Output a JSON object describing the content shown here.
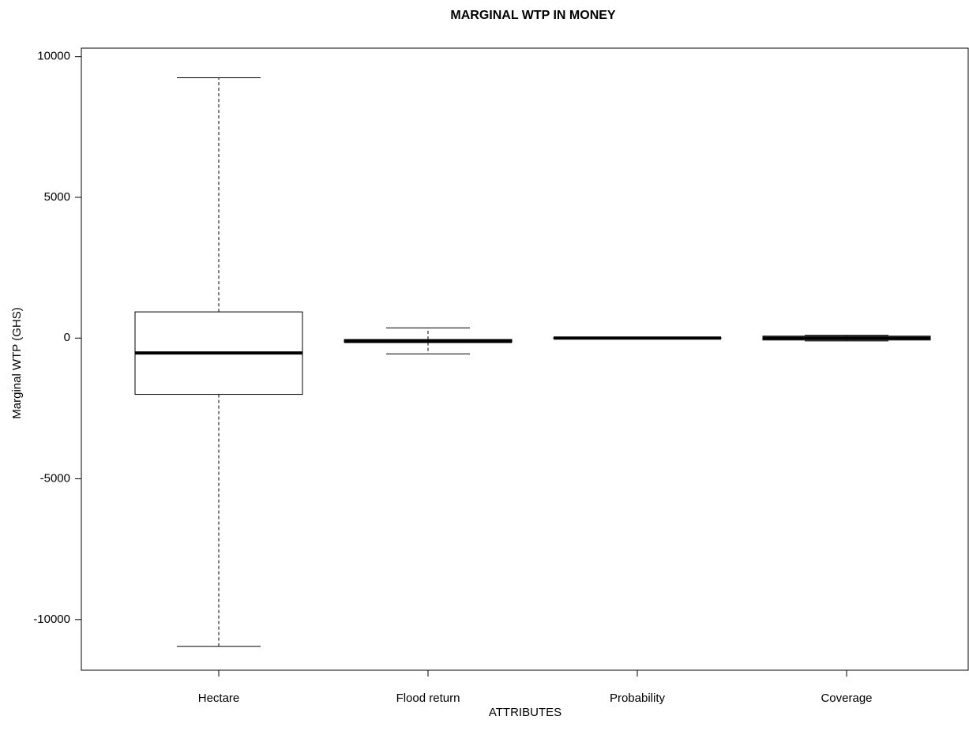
{
  "chart_data": {
    "type": "box",
    "title": "MARGINAL WTP IN MONEY",
    "x_label": "ATTRIBUTES",
    "y_label": "Marginal WTP (GHS)",
    "categories": [
      "Hectare",
      "Flood return",
      "Probability",
      "Coverage"
    ],
    "boxes": [
      {
        "low": -10950,
        "q1": -2000,
        "median": -530,
        "q3": 930,
        "high": 9250
      },
      {
        "low": -560,
        "q1": -150,
        "median": -120,
        "q3": -50,
        "high": 360
      },
      {
        "low": -20,
        "q1": -10,
        "median": 0,
        "q3": 10,
        "high": 20
      },
      {
        "low": -100,
        "q1": -70,
        "median": 0,
        "q3": 70,
        "high": 100
      }
    ],
    "ylim": [
      -11800,
      10300
    ],
    "yticks": [
      -10000,
      -5000,
      0,
      5000,
      10000
    ],
    "color": "#000000"
  }
}
